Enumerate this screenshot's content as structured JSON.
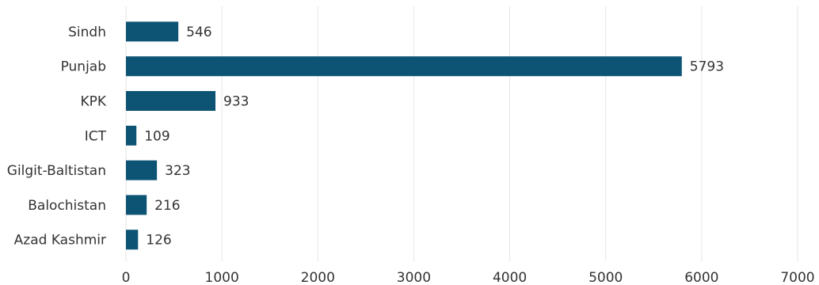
{
  "chart_data": {
    "type": "bar",
    "orientation": "horizontal",
    "title": "",
    "xlabel": "",
    "ylabel": "",
    "categories": [
      "Sindh",
      "Punjab",
      "KPK",
      "ICT",
      "Gilgit-Baltistan",
      "Balochistan",
      "Azad Kashmir"
    ],
    "values": [
      546,
      5793,
      933,
      109,
      323,
      216,
      126
    ],
    "xlim": [
      0,
      7000
    ],
    "xticks": [
      0,
      1000,
      2000,
      3000,
      4000,
      5000,
      6000,
      7000
    ],
    "tick_labels": [
      "0",
      "1000",
      "2000",
      "3000",
      "4000",
      "5000",
      "6000",
      "7000"
    ],
    "grid": "vertical",
    "legend": "none",
    "colors": {
      "bar": "#0d5474",
      "grid": "#e6e6e6",
      "text": "#333333"
    }
  }
}
